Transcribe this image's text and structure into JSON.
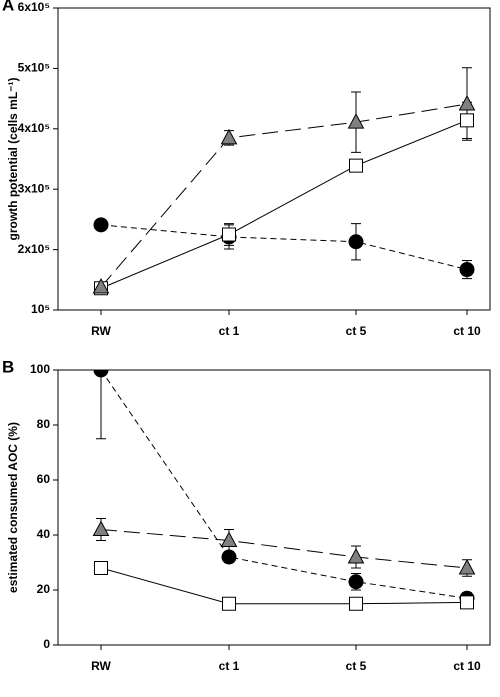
{
  "chart_data": [
    {
      "type": "line",
      "panel_label": "A",
      "ylabel": "growth potential (cells mL⁻¹)",
      "categories": [
        "RW",
        "ct 1",
        "ct 5",
        "ct 10"
      ],
      "ylim": [
        100000,
        600000
      ],
      "yticks": [
        {
          "value": 100000,
          "label": "10⁵"
        },
        {
          "value": 200000,
          "label": "2x10⁵"
        },
        {
          "value": 300000,
          "label": "3x10⁵"
        },
        {
          "value": 400000,
          "label": "4x10⁵"
        },
        {
          "value": 500000,
          "label": "5x10⁵"
        },
        {
          "value": 600000,
          "label": "6x10⁵"
        }
      ],
      "series": [
        {
          "marker": "circle",
          "color": "#000000",
          "dash": "short",
          "values": [
            241000,
            221000,
            213000,
            167000
          ],
          "errors": [
            0,
            20000,
            30000,
            15000
          ]
        },
        {
          "marker": "square",
          "color": "#ffffff",
          "dash": "solid",
          "values": [
            136000,
            225000,
            339000,
            414000
          ],
          "errors": [
            0,
            18000,
            0,
            30000
          ]
        },
        {
          "marker": "triangle",
          "color": "#808080",
          "dash": "long",
          "values": [
            138000,
            385000,
            411000,
            441000
          ],
          "errors": [
            0,
            12000,
            50000,
            60000
          ]
        }
      ]
    },
    {
      "type": "line",
      "panel_label": "B",
      "ylabel": "estimated consumed AOC (%)",
      "categories": [
        "RW",
        "ct 1",
        "ct 5",
        "ct 10"
      ],
      "ylim": [
        0,
        100
      ],
      "yticks": [
        0,
        20,
        40,
        60,
        80,
        100
      ],
      "series": [
        {
          "marker": "circle",
          "color": "#000000",
          "dash": "short",
          "values": [
            100,
            32,
            23,
            17
          ],
          "errors": [
            25,
            2,
            3,
            2
          ]
        },
        {
          "marker": "square",
          "color": "#ffffff",
          "dash": "solid",
          "values": [
            28,
            15,
            15,
            15.5
          ],
          "errors": [
            0,
            0,
            0,
            0
          ]
        },
        {
          "marker": "triangle",
          "color": "#808080",
          "dash": "long",
          "values": [
            42,
            38,
            32,
            28
          ],
          "errors": [
            4,
            4,
            4,
            3
          ]
        }
      ]
    }
  ]
}
